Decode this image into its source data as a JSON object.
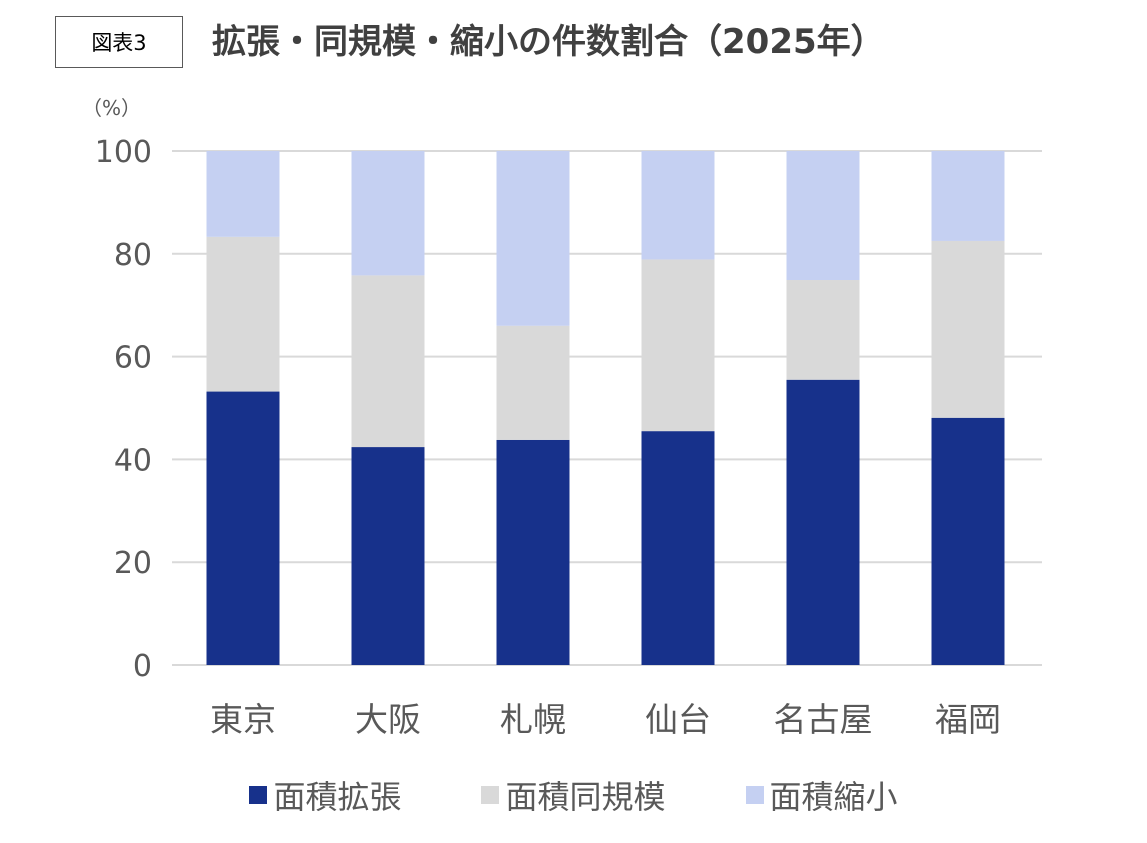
{
  "figure_label": "図表3",
  "chart_data": {
    "type": "bar",
    "stacked": true,
    "title": "拡張・同規模・縮小の件数割合（2025年）",
    "unit_label": "（%）",
    "categories": [
      "東京",
      "大阪",
      "札幌",
      "仙台",
      "名古屋",
      "福岡"
    ],
    "series": [
      {
        "name": "面積拡張",
        "color": "#17318B",
        "values": [
          53.2,
          42.4,
          43.8,
          45.5,
          55.5,
          48.1
        ]
      },
      {
        "name": "面積同規模",
        "color": "#D9D9D9",
        "values": [
          30.1,
          33.4,
          22.2,
          33.4,
          19.4,
          34.4
        ]
      },
      {
        "name": "面積縮小",
        "color": "#C5D0F2",
        "values": [
          16.7,
          24.2,
          34.0,
          21.1,
          25.1,
          17.5
        ]
      }
    ],
    "ylim": [
      0,
      100
    ],
    "yticks": [
      0,
      20,
      40,
      60,
      80,
      100
    ],
    "xlabel": "",
    "ylabel": "",
    "grid": true,
    "legend_position": "bottom",
    "gridline_color": "#D9D9D9",
    "axis_text_color": "#595959"
  }
}
